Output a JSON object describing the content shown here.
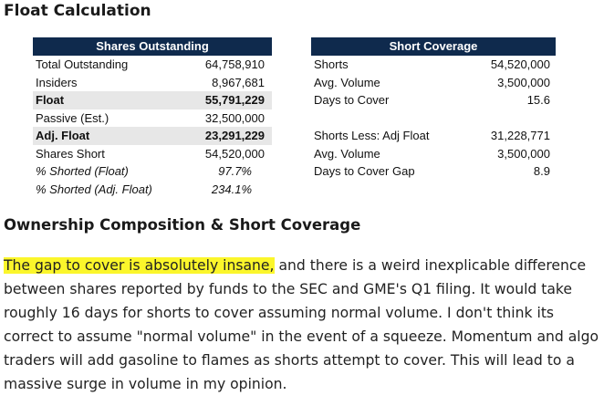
{
  "title": "Float Calculation",
  "left_table": {
    "header": "Shares Outstanding",
    "rows": [
      {
        "label": "Total Outstanding",
        "value": "64,758,910"
      },
      {
        "label": "Insiders",
        "value": "8,967,681"
      },
      {
        "label": "Float",
        "value": "55,791,229"
      },
      {
        "label": "Passive (Est.)",
        "value": "32,500,000"
      },
      {
        "label": "Adj. Float",
        "value": "23,291,229"
      },
      {
        "label": "Shares Short",
        "value": "54,520,000"
      },
      {
        "label": "% Shorted (Float)",
        "value": "97.7%"
      },
      {
        "label": "% Shorted (Adj. Float)",
        "value": "234.1%"
      }
    ]
  },
  "right_table": {
    "header": "Short Coverage",
    "rows": [
      {
        "label": "Shorts",
        "value": "54,520,000"
      },
      {
        "label": "Avg. Volume",
        "value": "3,500,000"
      },
      {
        "label": "Days to Cover",
        "value": "15.6"
      },
      {
        "label": "Shorts Less: Adj Float",
        "value": "31,228,771"
      },
      {
        "label": "Avg. Volume",
        "value": "3,500,000"
      },
      {
        "label": "Days to Cover Gap",
        "value": "8.9"
      }
    ]
  },
  "section_title": "Ownership Composition & Short Coverage",
  "paragraph": {
    "highlight": "The gap to cover is absolutely insane,",
    "rest": " and there is a weird inexplicable difference between shares reported by funds to the SEC and GME's Q1 filing. It would take roughly 16 days for shorts to cover assuming normal volume. I don't think its correct to assume \"normal volume\" in the event of a squeeze. Momentum and algo traders will add gasoline to flames as shorts attempt to cover. This will lead to a massive surge in volume in my opinion."
  },
  "colors": {
    "table_header": "#0f2a4d",
    "shaded_row": "#e7e7e7",
    "highlight": "#fbf62b"
  }
}
